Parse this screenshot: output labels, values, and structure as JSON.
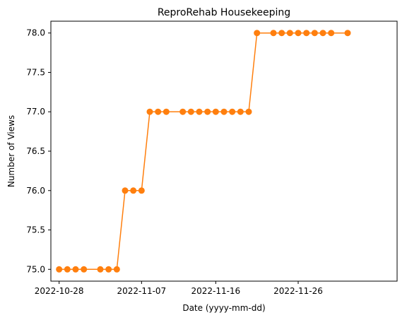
{
  "chart_data": {
    "type": "line",
    "title": "ReproRehab Housekeeping",
    "xlabel": "Date (yyyy-mm-dd)",
    "ylabel": "Number of Views",
    "ylim": [
      74.85,
      78.15
    ],
    "xlim": [
      "2022-10-27",
      "2022-12-08"
    ],
    "x_ticks": [
      "2022-10-28",
      "2022-11-07",
      "2022-11-16",
      "2022-11-26"
    ],
    "y_ticks": [
      "75.0",
      "75.5",
      "76.0",
      "76.5",
      "77.0",
      "77.5",
      "78.0"
    ],
    "grid": false,
    "color": "#ff7f0e",
    "series": [
      {
        "x": [
          "2022-10-28",
          "2022-10-29",
          "2022-10-30",
          "2022-10-31",
          "2022-11-02",
          "2022-11-03",
          "2022-11-04",
          "2022-11-05",
          "2022-11-06",
          "2022-11-07",
          "2022-11-08",
          "2022-11-09",
          "2022-11-10",
          "2022-11-12",
          "2022-11-13",
          "2022-11-14",
          "2022-11-15",
          "2022-11-16",
          "2022-11-17",
          "2022-11-18",
          "2022-11-19",
          "2022-11-20",
          "2022-11-21",
          "2022-11-23",
          "2022-11-24",
          "2022-11-25",
          "2022-11-26",
          "2022-11-27",
          "2022-11-28",
          "2022-11-29",
          "2022-11-30",
          "2022-12-02"
        ],
        "values": [
          75,
          75,
          75,
          75,
          75,
          75,
          75,
          76,
          76,
          76,
          77,
          77,
          77,
          77,
          77,
          77,
          77,
          77,
          77,
          77,
          77,
          77,
          78,
          78,
          78,
          78,
          78,
          78,
          78,
          78,
          78,
          78
        ]
      }
    ]
  }
}
